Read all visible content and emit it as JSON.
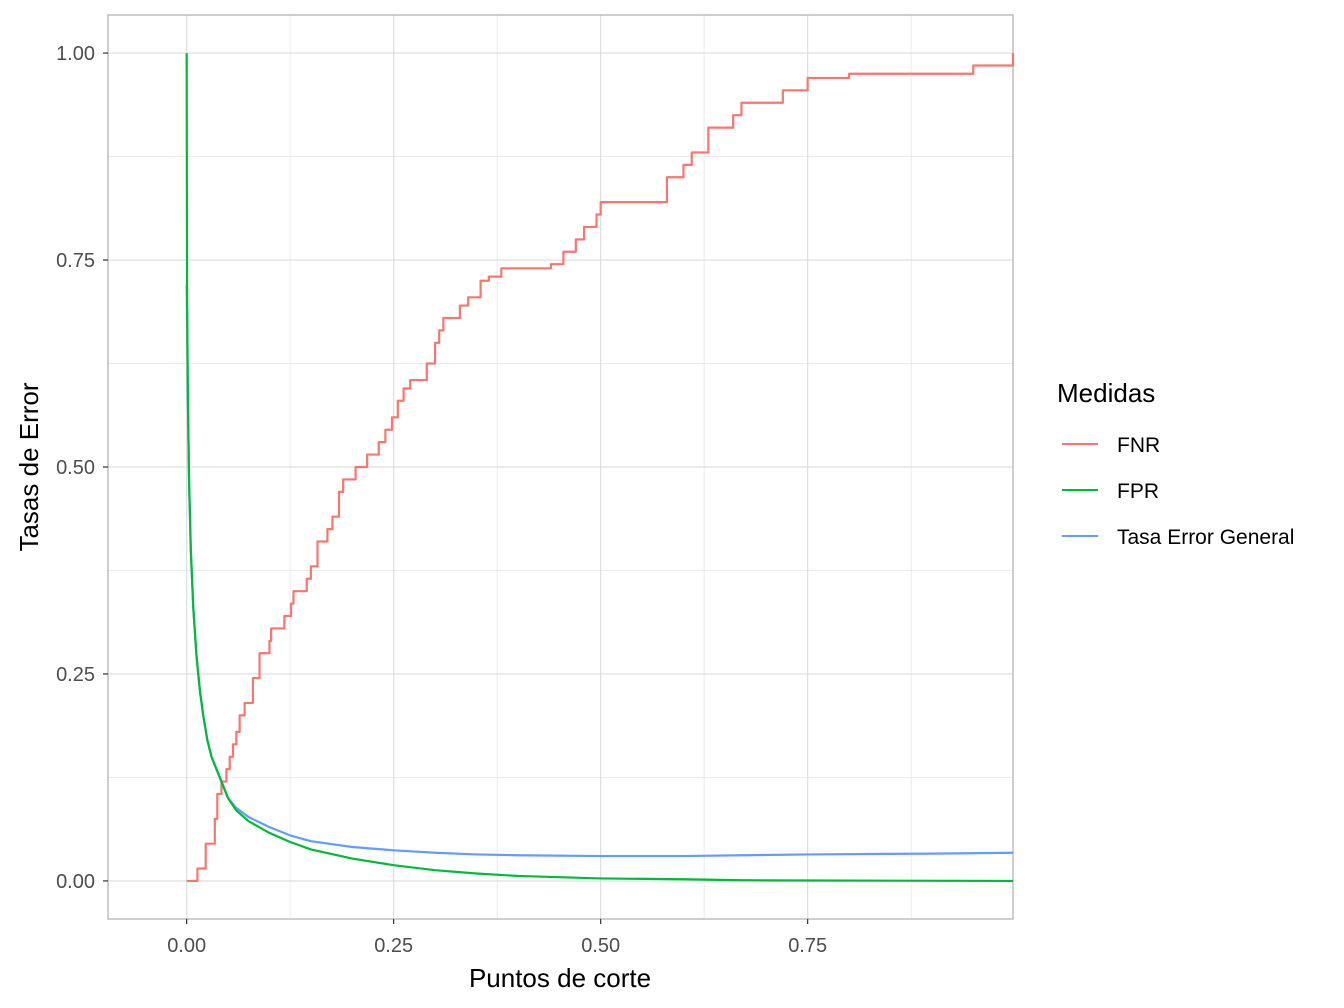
{
  "chart_data": {
    "type": "line",
    "xlabel": "Puntos de corte",
    "ylabel": "Tasas de Error",
    "xlim": [
      -0.095,
      0.998
    ],
    "ylim": [
      -0.046,
      1.046
    ],
    "x_ticks": [
      0.0,
      0.25,
      0.5,
      0.75
    ],
    "x_tick_labels": [
      "0.00",
      "0.25",
      "0.50",
      "0.75"
    ],
    "y_ticks": [
      0.0,
      0.25,
      0.5,
      0.75,
      1.0
    ],
    "y_tick_labels": [
      "0.00",
      "0.25",
      "0.50",
      "0.75",
      "1.00"
    ],
    "grid": true,
    "legend": {
      "title": "Medidas",
      "position": "right"
    },
    "series": [
      {
        "name": "FNR",
        "color": "#F8766D",
        "step": true,
        "points": [
          [
            0.0,
            0.0
          ],
          [
            0.012,
            0.0
          ],
          [
            0.013,
            0.015
          ],
          [
            0.022,
            0.015
          ],
          [
            0.023,
            0.045
          ],
          [
            0.033,
            0.045
          ],
          [
            0.034,
            0.075
          ],
          [
            0.037,
            0.105
          ],
          [
            0.042,
            0.12
          ],
          [
            0.048,
            0.135
          ],
          [
            0.052,
            0.15
          ],
          [
            0.056,
            0.165
          ],
          [
            0.06,
            0.18
          ],
          [
            0.064,
            0.2
          ],
          [
            0.07,
            0.215
          ],
          [
            0.08,
            0.245
          ],
          [
            0.088,
            0.275
          ],
          [
            0.1,
            0.29
          ],
          [
            0.102,
            0.305
          ],
          [
            0.118,
            0.32
          ],
          [
            0.126,
            0.335
          ],
          [
            0.129,
            0.35
          ],
          [
            0.145,
            0.365
          ],
          [
            0.15,
            0.38
          ],
          [
            0.158,
            0.41
          ],
          [
            0.17,
            0.425
          ],
          [
            0.176,
            0.44
          ],
          [
            0.184,
            0.47
          ],
          [
            0.189,
            0.485
          ],
          [
            0.204,
            0.5
          ],
          [
            0.218,
            0.515
          ],
          [
            0.232,
            0.53
          ],
          [
            0.24,
            0.545
          ],
          [
            0.248,
            0.56
          ],
          [
            0.255,
            0.58
          ],
          [
            0.262,
            0.595
          ],
          [
            0.27,
            0.605
          ],
          [
            0.29,
            0.625
          ],
          [
            0.3,
            0.65
          ],
          [
            0.305,
            0.665
          ],
          [
            0.31,
            0.68
          ],
          [
            0.33,
            0.695
          ],
          [
            0.34,
            0.705
          ],
          [
            0.355,
            0.725
          ],
          [
            0.365,
            0.73
          ],
          [
            0.38,
            0.74
          ],
          [
            0.44,
            0.745
          ],
          [
            0.455,
            0.76
          ],
          [
            0.47,
            0.775
          ],
          [
            0.48,
            0.79
          ],
          [
            0.495,
            0.805
          ],
          [
            0.5,
            0.82
          ],
          [
            0.53,
            0.82
          ],
          [
            0.58,
            0.85
          ],
          [
            0.6,
            0.865
          ],
          [
            0.61,
            0.88
          ],
          [
            0.63,
            0.91
          ],
          [
            0.66,
            0.925
          ],
          [
            0.67,
            0.94
          ],
          [
            0.72,
            0.955
          ],
          [
            0.75,
            0.97
          ],
          [
            0.8,
            0.975
          ],
          [
            0.95,
            0.985
          ],
          [
            0.998,
            1.0
          ]
        ]
      },
      {
        "name": "FPR",
        "color": "#00BA38",
        "step": false,
        "points": [
          [
            0.0,
            1.0
          ],
          [
            0.0005,
            0.7
          ],
          [
            0.0015,
            0.58
          ],
          [
            0.003,
            0.48
          ],
          [
            0.005,
            0.4
          ],
          [
            0.008,
            0.33
          ],
          [
            0.012,
            0.27
          ],
          [
            0.016,
            0.23
          ],
          [
            0.02,
            0.2
          ],
          [
            0.025,
            0.17
          ],
          [
            0.03,
            0.15
          ],
          [
            0.04,
            0.125
          ],
          [
            0.05,
            0.1
          ],
          [
            0.06,
            0.085
          ],
          [
            0.075,
            0.072
          ],
          [
            0.1,
            0.058
          ],
          [
            0.125,
            0.047
          ],
          [
            0.15,
            0.038
          ],
          [
            0.2,
            0.027
          ],
          [
            0.25,
            0.019
          ],
          [
            0.3,
            0.013
          ],
          [
            0.35,
            0.009
          ],
          [
            0.4,
            0.006
          ],
          [
            0.5,
            0.003
          ],
          [
            0.6,
            0.002
          ],
          [
            0.67,
            0.0008
          ],
          [
            0.75,
            0.0005
          ],
          [
            0.998,
            0.0
          ]
        ]
      },
      {
        "name": "Tasa Error General",
        "color": "#619CFF",
        "step": false,
        "points": [
          [
            0.0,
            0.72
          ],
          [
            0.0005,
            0.69
          ],
          [
            0.0015,
            0.58
          ],
          [
            0.003,
            0.48
          ],
          [
            0.005,
            0.4
          ],
          [
            0.008,
            0.33
          ],
          [
            0.012,
            0.27
          ],
          [
            0.016,
            0.23
          ],
          [
            0.02,
            0.2
          ],
          [
            0.025,
            0.17
          ],
          [
            0.03,
            0.15
          ],
          [
            0.04,
            0.125
          ],
          [
            0.05,
            0.1
          ],
          [
            0.06,
            0.088
          ],
          [
            0.075,
            0.077
          ],
          [
            0.1,
            0.065
          ],
          [
            0.125,
            0.055
          ],
          [
            0.15,
            0.048
          ],
          [
            0.2,
            0.041
          ],
          [
            0.25,
            0.037
          ],
          [
            0.3,
            0.034
          ],
          [
            0.35,
            0.032
          ],
          [
            0.4,
            0.031
          ],
          [
            0.5,
            0.03
          ],
          [
            0.6,
            0.03
          ],
          [
            0.67,
            0.031
          ],
          [
            0.75,
            0.032
          ],
          [
            0.9,
            0.033
          ],
          [
            0.998,
            0.034
          ]
        ]
      }
    ]
  }
}
